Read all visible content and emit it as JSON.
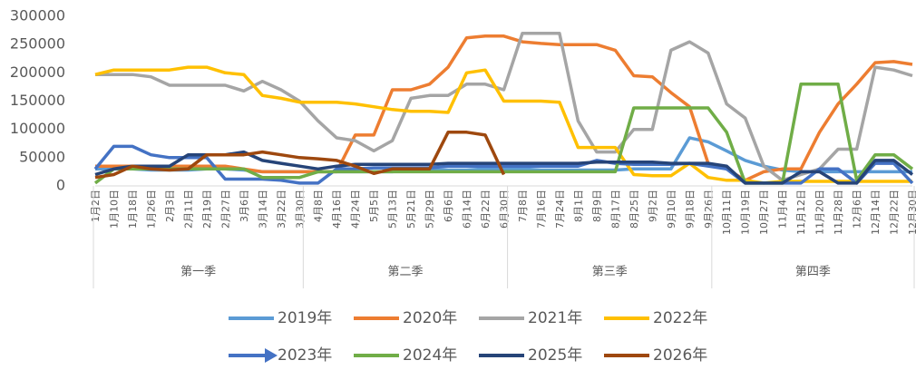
{
  "chart_data": {
    "type": "line",
    "categories": [
      "1月2日",
      "1月10日",
      "1月18日",
      "1月26日",
      "2月3日",
      "2月11日",
      "2月19日",
      "2月27日",
      "3月6日",
      "3月14日",
      "3月22日",
      "3月30日",
      "4月8日",
      "4月16日",
      "4月24日",
      "5月5日",
      "5月13日",
      "5月21日",
      "5月29日",
      "6月6日",
      "6月14日",
      "6月22日",
      "6月30日",
      "7月8日",
      "7月16日",
      "7月24日",
      "8月1日",
      "8月9日",
      "8月17日",
      "8月25日",
      "9月2日",
      "9月10日",
      "9月18日",
      "9月26日",
      "10月11日",
      "10月19日",
      "10月27日",
      "11月4日",
      "11月12日",
      "11月20日",
      "11月28日",
      "12月6日",
      "12月14日",
      "12月22日",
      "12月30日"
    ],
    "quarters": [
      "第一季",
      "第二季",
      "第三季",
      "第四季"
    ],
    "ylim": [
      0,
      300000
    ],
    "yticks": [
      0,
      50000,
      100000,
      150000,
      200000,
      250000,
      300000
    ],
    "grid": false,
    "series": [
      {
        "name": "2019年",
        "color": "#5b9bd5",
        "values": [
          30000,
          30000,
          30000,
          28000,
          28000,
          28000,
          30000,
          30000,
          28000,
          25000,
          25000,
          25000,
          25000,
          25000,
          25000,
          25000,
          25000,
          28000,
          28000,
          28000,
          28000,
          30000,
          30000,
          30000,
          28000,
          28000,
          28000,
          28000,
          28000,
          30000,
          30000,
          30000,
          85000,
          78000,
          62000,
          45000,
          35000,
          28000,
          25000,
          25000,
          25000,
          25000,
          25000,
          25000,
          25000
        ]
      },
      {
        "name": "2020年",
        "color": "#ed7d31",
        "values": [
          35000,
          35000,
          35000,
          35000,
          35000,
          35000,
          35000,
          35000,
          30000,
          25000,
          25000,
          25000,
          25000,
          25000,
          90000,
          90000,
          170000,
          170000,
          180000,
          210000,
          262000,
          265000,
          265000,
          255000,
          252000,
          250000,
          250000,
          250000,
          240000,
          195000,
          193000,
          165000,
          140000,
          40000,
          30000,
          10000,
          25000,
          30000,
          30000,
          95000,
          145000,
          180000,
          218000,
          220000,
          215000
        ]
      },
      {
        "name": "2021年",
        "color": "#a5a5a5",
        "values": [
          197000,
          197000,
          197000,
          193000,
          178000,
          178000,
          178000,
          178000,
          168000,
          185000,
          170000,
          150000,
          115000,
          85000,
          80000,
          62000,
          80000,
          155000,
          160000,
          160000,
          180000,
          180000,
          170000,
          270000,
          270000,
          270000,
          115000,
          60000,
          60000,
          100000,
          100000,
          240000,
          255000,
          235000,
          145000,
          120000,
          35000,
          10000,
          20000,
          30000,
          65000,
          65000,
          210000,
          205000,
          195000
        ]
      },
      {
        "name": "2022年",
        "color": "#ffc000",
        "values": [
          197000,
          205000,
          205000,
          205000,
          205000,
          210000,
          210000,
          200000,
          197000,
          160000,
          155000,
          148000,
          148000,
          148000,
          145000,
          140000,
          135000,
          132000,
          132000,
          130000,
          200000,
          205000,
          150000,
          150000,
          150000,
          148000,
          68000,
          68000,
          68000,
          20000,
          18000,
          18000,
          40000,
          15000,
          10000,
          10000,
          5000,
          8000,
          8000,
          8000,
          8000,
          8000,
          8000,
          8000,
          8000
        ]
      },
      {
        "name": "2023年",
        "color": "#4472c4",
        "values": [
          30000,
          70000,
          70000,
          55000,
          50000,
          50000,
          50000,
          12000,
          12000,
          12000,
          10000,
          5000,
          5000,
          30000,
          30000,
          32000,
          32000,
          32000,
          32000,
          35000,
          35000,
          35000,
          35000,
          35000,
          35000,
          35000,
          35000,
          45000,
          40000,
          38000,
          38000,
          38000,
          40000,
          35000,
          30000,
          5000,
          5000,
          5000,
          5000,
          30000,
          30000,
          5000,
          40000,
          40000,
          5000
        ]
      },
      {
        "name": "2024年",
        "color": "#70ad47",
        "values": [
          5000,
          30000,
          30000,
          30000,
          30000,
          30000,
          30000,
          30000,
          30000,
          15000,
          15000,
          15000,
          25000,
          25000,
          25000,
          25000,
          25000,
          25000,
          25000,
          25000,
          25000,
          25000,
          25000,
          25000,
          25000,
          25000,
          25000,
          25000,
          25000,
          138000,
          138000,
          138000,
          138000,
          138000,
          95000,
          5000,
          5000,
          5000,
          180000,
          180000,
          180000,
          10000,
          55000,
          55000,
          30000
        ]
      },
      {
        "name": "2025年",
        "color": "#264478",
        "values": [
          20000,
          30000,
          35000,
          35000,
          35000,
          55000,
          55000,
          55000,
          60000,
          45000,
          40000,
          35000,
          30000,
          35000,
          38000,
          38000,
          38000,
          38000,
          38000,
          40000,
          40000,
          40000,
          40000,
          40000,
          40000,
          40000,
          40000,
          42000,
          42000,
          42000,
          42000,
          40000,
          40000,
          40000,
          35000,
          5000,
          5000,
          5000,
          25000,
          25000,
          5000,
          5000,
          45000,
          45000,
          20000
        ]
      },
      {
        "name": "2026年",
        "color": "#9e480e",
        "values": [
          15000,
          20000,
          35000,
          30000,
          28000,
          30000,
          55000,
          55000,
          55000,
          60000,
          55000,
          50000,
          48000,
          45000,
          35000,
          22000,
          30000,
          30000,
          30000,
          95000,
          95000,
          90000,
          20000,
          null,
          null,
          null,
          null,
          null,
          null,
          null,
          null,
          null,
          null,
          null,
          null,
          null,
          null,
          null,
          null,
          null,
          null,
          null,
          null,
          null,
          null
        ]
      }
    ]
  }
}
